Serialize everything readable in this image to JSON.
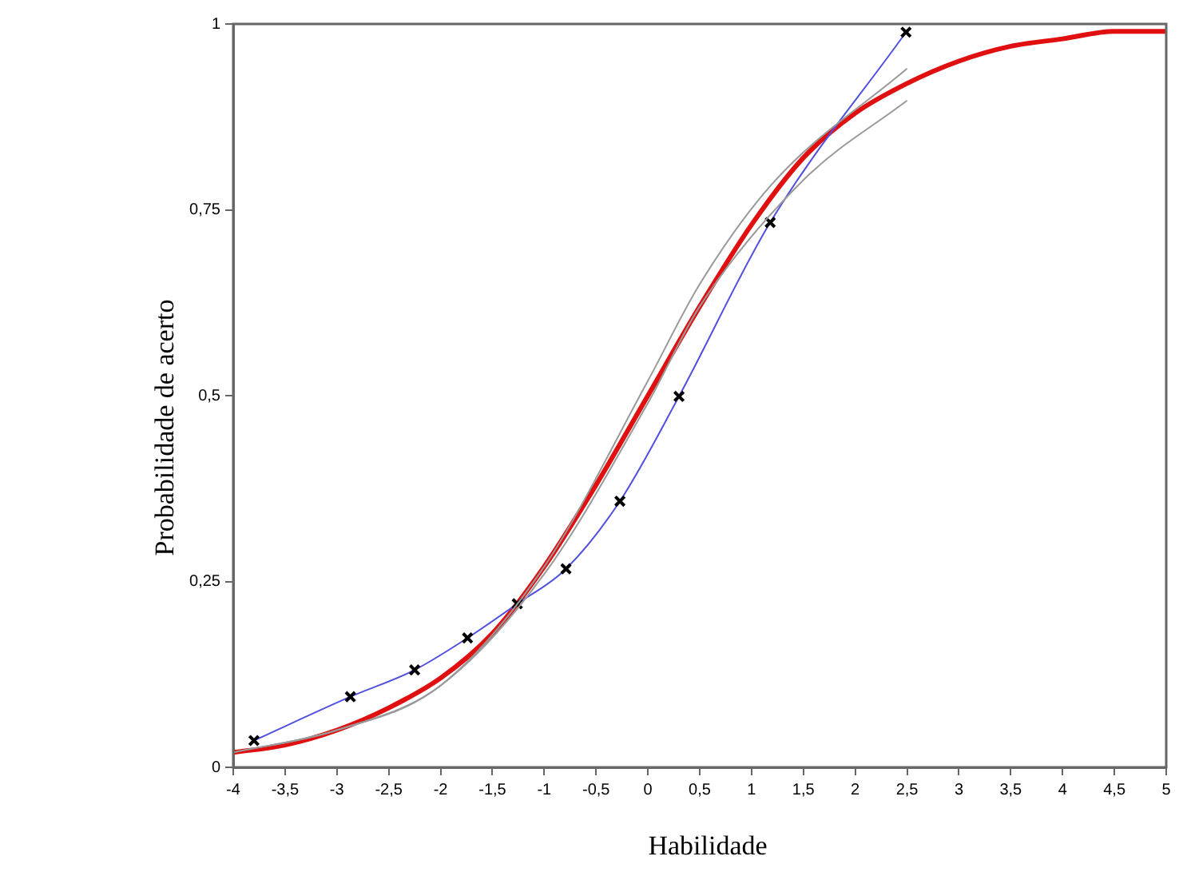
{
  "chart_data": {
    "type": "line",
    "xlabel": "Habilidade",
    "ylabel": "Probabilidade de acerto",
    "xlim": [
      -4,
      5
    ],
    "ylim": [
      0,
      1
    ],
    "xticks": [
      -4,
      {
        "value": -3.5,
        "label": "-3,5"
      },
      -3,
      {
        "value": -2.5,
        "label": "-2,5"
      },
      -2,
      {
        "value": -1.5,
        "label": "-1,5"
      },
      -1,
      {
        "value": -0.5,
        "label": "-0,5"
      },
      0,
      {
        "value": 0.5,
        "label": "0,5"
      },
      1,
      {
        "value": 1.5,
        "label": "1,5"
      },
      2,
      {
        "value": 2.5,
        "label": "2,5"
      },
      3,
      {
        "value": 3.5,
        "label": "3,5"
      },
      4,
      {
        "value": 4.5,
        "label": "4,5"
      },
      5
    ],
    "yticks": [
      0,
      {
        "value": 0.25,
        "label": "0,25"
      },
      {
        "value": 0.5,
        "label": "0,5"
      },
      {
        "value": 0.75,
        "label": "0,75"
      },
      1
    ],
    "grid": false,
    "legend": false,
    "series": [
      {
        "color": "#999999",
        "marker": "none",
        "x": [
          -4,
          -3,
          -2,
          -1,
          0,
          0.5,
          1.2,
          2.5
        ],
        "values": [
          0.02,
          0.05,
          0.11,
          0.27,
          0.52,
          0.65,
          0.785,
          0.94
        ]
      },
      {
        "color": "#999999",
        "marker": "none",
        "x": [
          -4,
          -3,
          -2,
          -1,
          0,
          0.5,
          1.5,
          2.5
        ],
        "values": [
          0.02,
          0.05,
          0.11,
          0.26,
          0.49,
          0.62,
          0.79,
          0.897
        ]
      },
      {
        "color": "#5050e0",
        "marker": "cross",
        "x": [
          -3.8,
          -2.87,
          -2.25,
          -1.74,
          -1.26,
          -0.79,
          -0.27,
          0.3,
          1.18,
          2.49
        ],
        "values": [
          0.036,
          0.095,
          0.131,
          0.174,
          0.22,
          0.267,
          0.358,
          0.499,
          0.733,
          0.989
        ]
      },
      {
        "color": "#e01010",
        "marker": "none",
        "x": [
          -4,
          -3.5,
          -3,
          -2.5,
          -2,
          -1.5,
          -1,
          -0.5,
          0,
          0.5,
          1,
          1.5,
          2,
          2.5,
          3,
          3.5,
          4,
          4.5,
          5
        ],
        "values": [
          0.02,
          0.03,
          0.05,
          0.08,
          0.12,
          0.18,
          0.27,
          0.38,
          0.5,
          0.62,
          0.73,
          0.82,
          0.88,
          0.92,
          0.95,
          0.97,
          0.98,
          0.99,
          0.99
        ]
      }
    ]
  }
}
